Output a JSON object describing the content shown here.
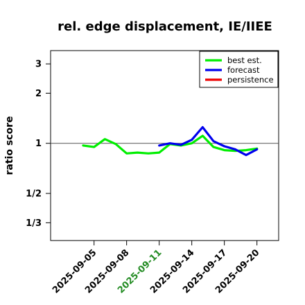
{
  "chart_data": {
    "type": "line",
    "title": "rel. edge displacement, IE/IIEE",
    "xlabel": "",
    "ylabel": "ratio score",
    "y_scale": "log",
    "ylim_log2": [
      -1.94,
      1.85
    ],
    "reference_line": 1,
    "y_ticks": [
      {
        "label": "3",
        "value": 3
      },
      {
        "label": "2",
        "value": 2
      },
      {
        "label": "1",
        "value": 1
      },
      {
        "label": "1/2",
        "value": 0.5
      },
      {
        "label": "1/3",
        "value": 0.3333
      }
    ],
    "x_range": [
      "2025-09-01",
      "2025-09-22"
    ],
    "x_ticks": [
      {
        "label": "2025-09-05",
        "date": "2025-09-05",
        "color": "#000000"
      },
      {
        "label": "2025-09-08",
        "date": "2025-09-08",
        "color": "#000000"
      },
      {
        "label": "2025-09-11",
        "date": "2025-09-11",
        "color": "#228B22"
      },
      {
        "label": "2025-09-14",
        "date": "2025-09-14",
        "color": "#000000"
      },
      {
        "label": "2025-09-17",
        "date": "2025-09-17",
        "color": "#000000"
      },
      {
        "label": "2025-09-20",
        "date": "2025-09-20",
        "color": "#000000"
      }
    ],
    "series": [
      {
        "name": "best est.",
        "color": "#00ee00",
        "x": [
          "2025-09-04",
          "2025-09-05",
          "2025-09-06",
          "2025-09-07",
          "2025-09-08",
          "2025-09-09",
          "2025-09-10",
          "2025-09-11",
          "2025-09-12",
          "2025-09-13",
          "2025-09-14",
          "2025-09-15",
          "2025-09-16",
          "2025-09-17",
          "2025-09-18",
          "2025-09-19",
          "2025-09-20"
        ],
        "y": [
          0.97,
          0.95,
          1.06,
          0.99,
          0.87,
          0.88,
          0.87,
          0.88,
          0.99,
          0.97,
          1.0,
          1.11,
          0.95,
          0.91,
          0.9,
          0.91,
          0.93
        ]
      },
      {
        "name": "forecast",
        "color": "#0000ee",
        "x": [
          "2025-09-11",
          "2025-09-12",
          "2025-09-13",
          "2025-09-14",
          "2025-09-15",
          "2025-09-16",
          "2025-09-17",
          "2025-09-18",
          "2025-09-19",
          "2025-09-20"
        ],
        "y": [
          0.97,
          1.0,
          0.98,
          1.05,
          1.25,
          1.03,
          0.96,
          0.92,
          0.85,
          0.92
        ]
      },
      {
        "name": "persistence",
        "color": "#ee0000",
        "x": [],
        "y": []
      }
    ],
    "legend_position": "top-right",
    "grid": false
  }
}
